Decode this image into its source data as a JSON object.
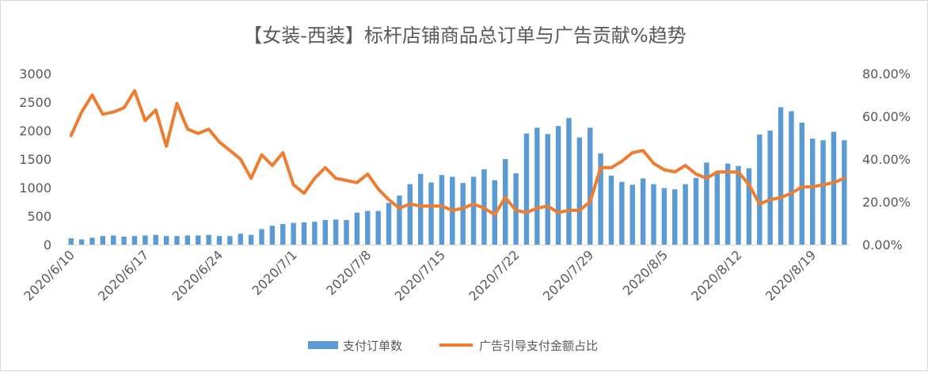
{
  "chart_data": {
    "type": "bar+line",
    "title": "【女装-西装】标杆店铺商品总订单与广告贡献%趋势",
    "xlabel": "",
    "ylabel": "",
    "y_left_lim": [
      0,
      3000
    ],
    "y_left_ticks": [
      "0",
      "500",
      "1000",
      "1500",
      "2000",
      "2500",
      "3000"
    ],
    "y_right_lim": [
      0,
      0.8
    ],
    "y_right_ticks": [
      "0.00%",
      "20.00%",
      "40.00%",
      "60.00%",
      "80.00%"
    ],
    "x_tick_labels": [
      "2020/6/10",
      "2020/6/17",
      "2020/6/24",
      "2020/7/1",
      "2020/7/8",
      "2020/7/15",
      "2020/7/22",
      "2020/7/29",
      "2020/8/5",
      "2020/8/12",
      "2020/8/19"
    ],
    "grid": false,
    "legend_position": "bottom",
    "colors": {
      "bar": "#5b9bd5",
      "line": "#ed7d31",
      "text": "#595959",
      "axis": "#d9d9d9"
    },
    "series": [
      {
        "name": "支付订单数",
        "type": "bar",
        "axis": "left",
        "values": [
          110,
          90,
          120,
          150,
          160,
          140,
          150,
          160,
          170,
          150,
          150,
          160,
          160,
          170,
          150,
          150,
          190,
          170,
          270,
          330,
          360,
          380,
          390,
          400,
          430,
          440,
          430,
          560,
          590,
          590,
          730,
          860,
          1060,
          1240,
          1090,
          1220,
          1190,
          1080,
          1190,
          1320,
          1130,
          1500,
          1250,
          1950,
          2050,
          1940,
          2080,
          2220,
          1880,
          2050,
          1600,
          1210,
          1100,
          1050,
          1160,
          1060,
          990,
          970,
          1060,
          1170,
          1440,
          1280,
          1420,
          1380,
          1340,
          1930,
          2000,
          2410,
          2340,
          2140,
          1860,
          1830,
          1980,
          1830
        ]
      },
      {
        "name": "广告引导支付金额占比",
        "type": "line",
        "axis": "right",
        "values": [
          0.51,
          0.62,
          0.7,
          0.61,
          0.62,
          0.64,
          0.72,
          0.58,
          0.63,
          0.46,
          0.66,
          0.54,
          0.52,
          0.54,
          0.48,
          0.44,
          0.4,
          0.31,
          0.42,
          0.37,
          0.43,
          0.28,
          0.24,
          0.31,
          0.36,
          0.31,
          0.3,
          0.29,
          0.33,
          0.26,
          0.21,
          0.17,
          0.19,
          0.18,
          0.18,
          0.18,
          0.16,
          0.17,
          0.19,
          0.17,
          0.14,
          0.22,
          0.16,
          0.15,
          0.17,
          0.18,
          0.15,
          0.16,
          0.16,
          0.2,
          0.36,
          0.36,
          0.39,
          0.43,
          0.44,
          0.38,
          0.35,
          0.34,
          0.37,
          0.33,
          0.31,
          0.34,
          0.34,
          0.34,
          0.28,
          0.19,
          0.21,
          0.22,
          0.24,
          0.27,
          0.27,
          0.28,
          0.29,
          0.31
        ]
      }
    ]
  }
}
